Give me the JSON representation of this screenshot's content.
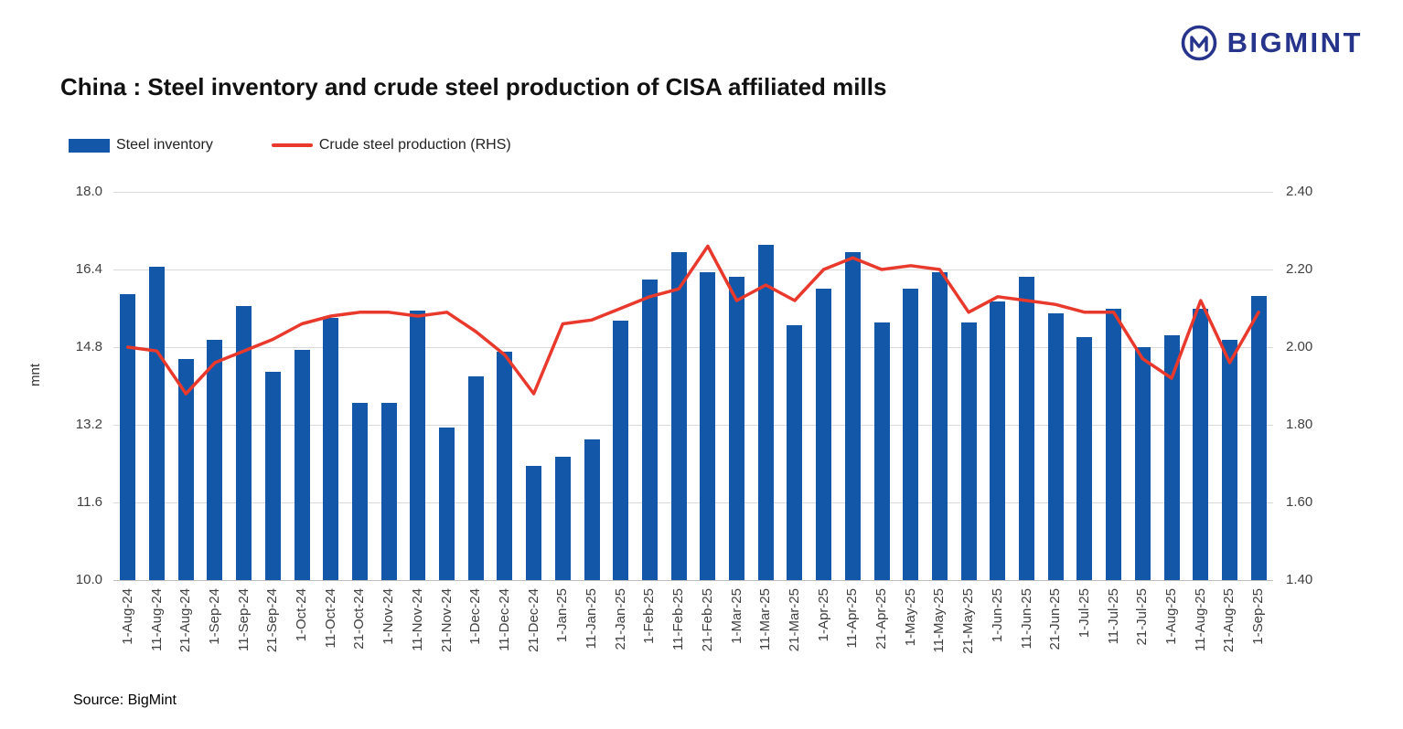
{
  "header": {
    "title": "China : Steel inventory and crude steel production of CISA affiliated mills",
    "logo_text": "BIGMINT"
  },
  "legend": [
    {
      "label": "Steel inventory",
      "type": "bar"
    },
    {
      "label": "Crude steel production (RHS)",
      "type": "line"
    }
  ],
  "source": "Source: BigMint",
  "colors": {
    "bar": "#1358A8",
    "line": "#E8392C",
    "logo": "#27348B",
    "grid": "#D9D9D9",
    "axis_line": "#BFBFBF",
    "tick_text": "#404040"
  },
  "chart_data": {
    "type": "bar",
    "title": "China : Steel inventory and crude steel production of CISA affiliated mills",
    "grid": true,
    "legend_position": "top-left",
    "categories": [
      "1-Aug-24",
      "11-Aug-24",
      "21-Aug-24",
      "1-Sep-24",
      "11-Sep-24",
      "21-Sep-24",
      "1-Oct-24",
      "11-Oct-24",
      "21-Oct-24",
      "1-Nov-24",
      "11-Nov-24",
      "21-Nov-24",
      "1-Dec-24",
      "11-Dec-24",
      "21-Dec-24",
      "1-Jan-25",
      "11-Jan-25",
      "21-Jan-25",
      "1-Feb-25",
      "11-Feb-25",
      "21-Feb-25",
      "1-Mar-25",
      "11-Mar-25",
      "21-Mar-25",
      "1-Apr-25",
      "11-Apr-25",
      "21-Apr-25",
      "1-May-25",
      "11-May-25",
      "21-May-25",
      "1-Jun-25",
      "11-Jun-25",
      "21-Jun-25",
      "1-Jul-25",
      "11-Jul-25",
      "21-Jul-25",
      "1-Aug-25",
      "11-Aug-25",
      "21-Aug-25",
      "1-Sep-25"
    ],
    "series": [
      {
        "name": "Steel inventory",
        "type": "bar",
        "axis": "left",
        "values": [
          15.9,
          16.45,
          14.55,
          14.95,
          15.65,
          14.3,
          14.75,
          15.4,
          13.65,
          13.65,
          15.55,
          13.15,
          14.2,
          14.7,
          12.35,
          12.55,
          12.9,
          15.35,
          16.2,
          16.75,
          16.35,
          16.25,
          16.9,
          15.25,
          16.0,
          16.75,
          15.3,
          16.0,
          16.35,
          15.3,
          15.75,
          16.25,
          15.5,
          15.0,
          15.6,
          14.8,
          15.05,
          15.6,
          14.95,
          15.85
        ]
      },
      {
        "name": "Crude steel production (RHS)",
        "type": "line",
        "axis": "right",
        "values": [
          2.0,
          1.99,
          1.88,
          1.96,
          1.99,
          2.02,
          2.06,
          2.08,
          2.09,
          2.09,
          2.08,
          2.09,
          2.04,
          1.98,
          1.88,
          2.06,
          2.07,
          2.1,
          2.13,
          2.15,
          2.26,
          2.12,
          2.16,
          2.12,
          2.2,
          2.23,
          2.2,
          2.21,
          2.2,
          2.09,
          2.13,
          2.12,
          2.11,
          2.09,
          2.09,
          1.97,
          1.92,
          2.12,
          1.96,
          2.09
        ]
      }
    ],
    "left_axis": {
      "label": "mnt",
      "min": 10.0,
      "max": 18.0,
      "ticks": [
        "18.0",
        "16.4",
        "14.8",
        "13.2",
        "11.6",
        "10.0"
      ]
    },
    "right_axis": {
      "min": 1.4,
      "max": 2.4,
      "ticks": [
        "2.40",
        "2.20",
        "2.00",
        "1.80",
        "1.60",
        "1.40"
      ]
    }
  }
}
